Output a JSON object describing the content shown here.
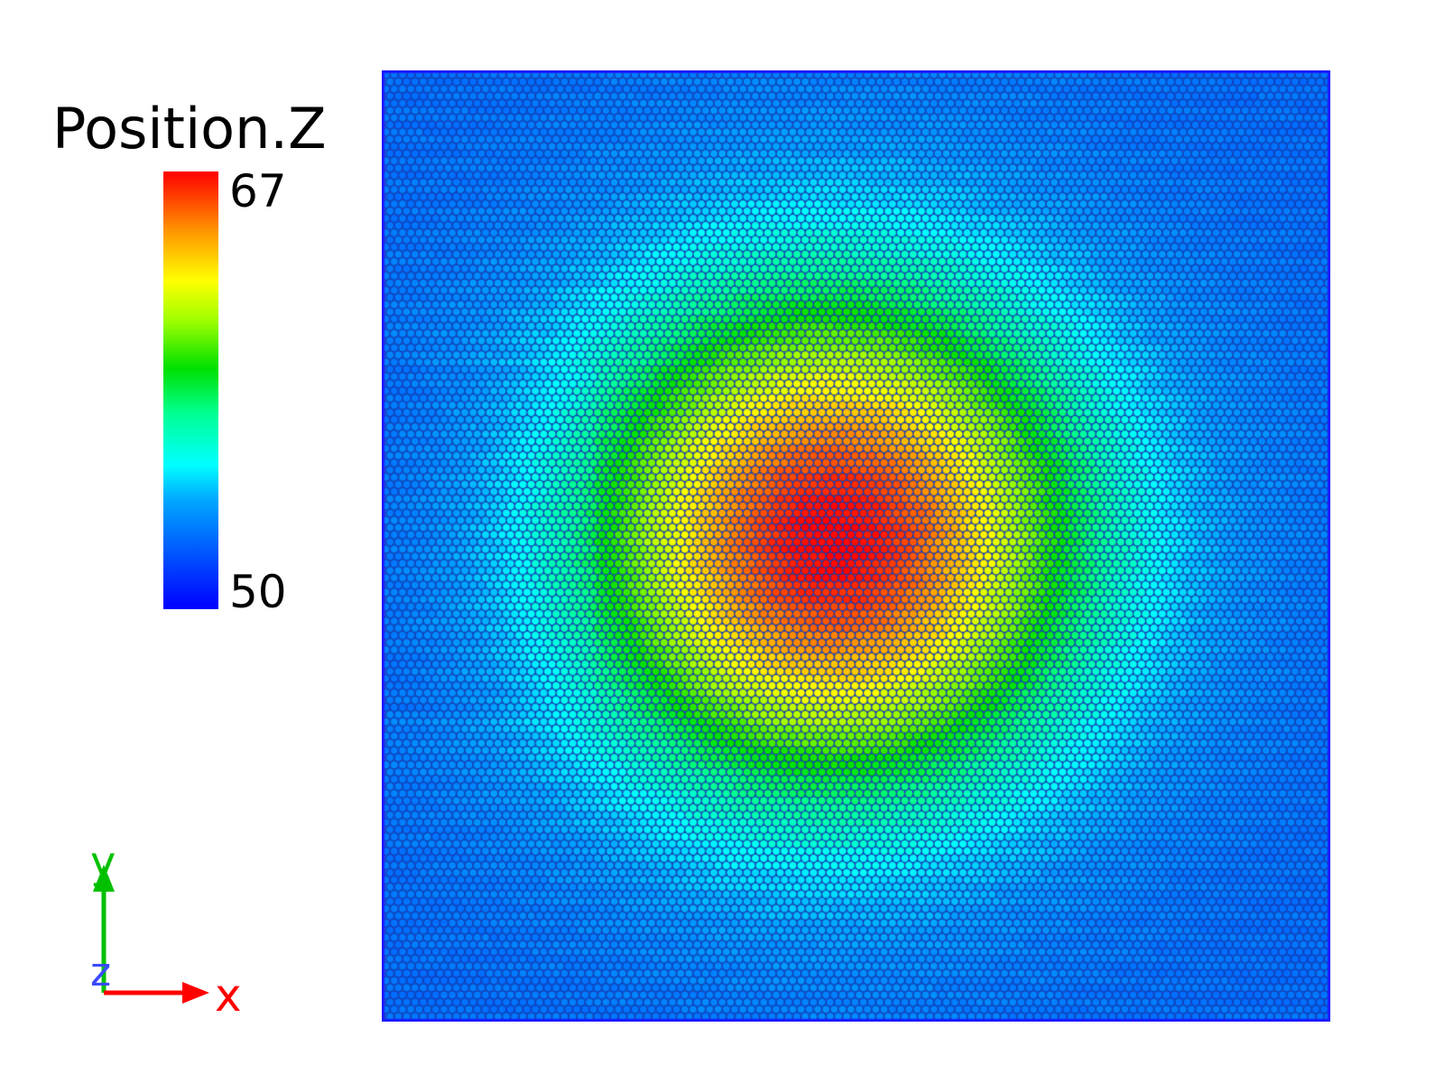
{
  "legend": {
    "title": "Position.Z",
    "max_label": "67",
    "min_label": "50",
    "value_range": [
      50,
      67
    ],
    "colormap": [
      "#0000ff",
      "#0080ff",
      "#00ffff",
      "#00ff80",
      "#00e000",
      "#80ff00",
      "#ffff00",
      "#ffa000",
      "#ff5000",
      "#ff0000"
    ]
  },
  "axes": {
    "x_label": "x",
    "y_label": "y",
    "z_label": "z",
    "x_color": "#ff0000",
    "y_color": "#00c000",
    "z_color": "#3b4bff"
  },
  "field": {
    "description_peak_value": 67,
    "baseline_value": 52,
    "border_color": "#1a1aff"
  }
}
